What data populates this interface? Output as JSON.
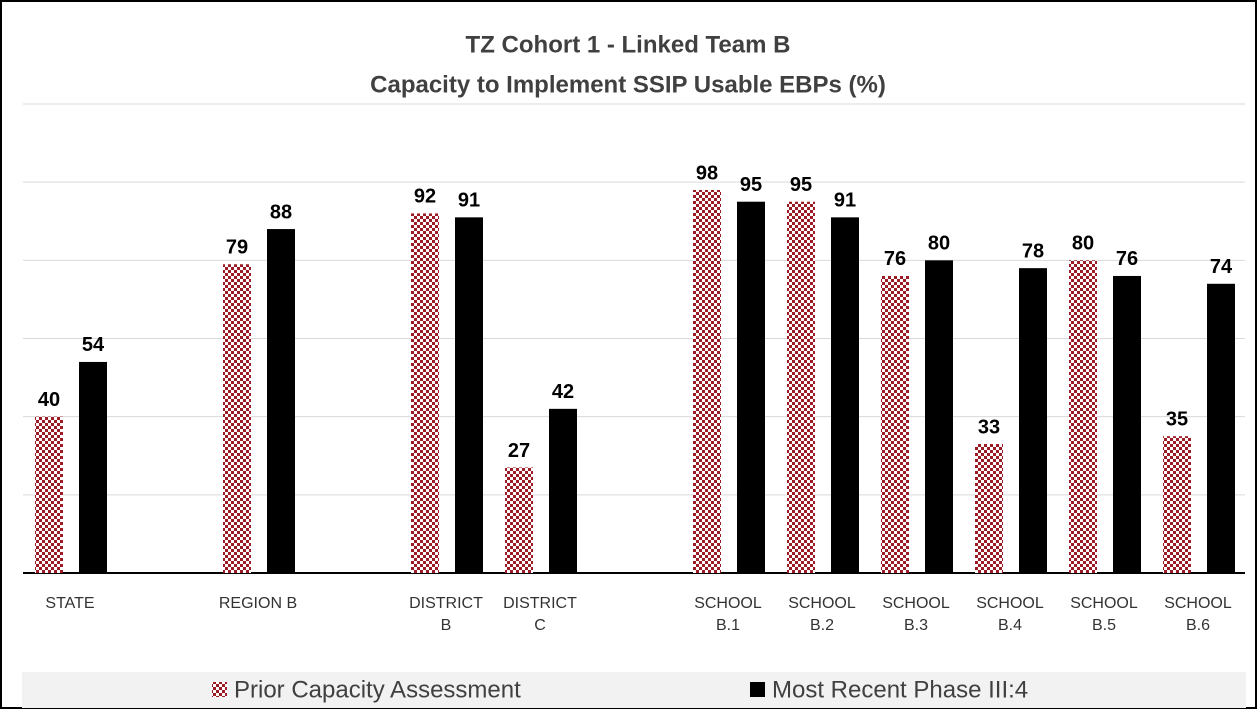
{
  "chart_data": {
    "type": "bar",
    "title": "TZ Cohort 1 - Linked Team B",
    "subtitle": "Capacity to Implement SSIP Usable EBPs (%)",
    "categories": [
      "STATE",
      null,
      "REGION B",
      null,
      "DISTRICT B",
      "DISTRICT C",
      null,
      "SCHOOL B.1",
      "SCHOOL B.2",
      "SCHOOL B.3",
      "SCHOOL B.4",
      "SCHOOL B.5",
      "SCHOOL B.6"
    ],
    "series": [
      {
        "name": "Prior Capacity Assessment",
        "color": "#9b1c24",
        "pattern": "checkerboard",
        "values": [
          40,
          null,
          79,
          null,
          92,
          27,
          null,
          98,
          95,
          76,
          33,
          80,
          35
        ]
      },
      {
        "name": "Most Recent Phase III:4",
        "color": "#000000",
        "values": [
          54,
          null,
          88,
          null,
          91,
          42,
          null,
          95,
          91,
          80,
          78,
          76,
          74
        ]
      }
    ],
    "ylim": [
      0,
      120
    ],
    "yticks": [
      0,
      20,
      40,
      60,
      80,
      100,
      120
    ],
    "grid": true,
    "legend": "bottom"
  }
}
